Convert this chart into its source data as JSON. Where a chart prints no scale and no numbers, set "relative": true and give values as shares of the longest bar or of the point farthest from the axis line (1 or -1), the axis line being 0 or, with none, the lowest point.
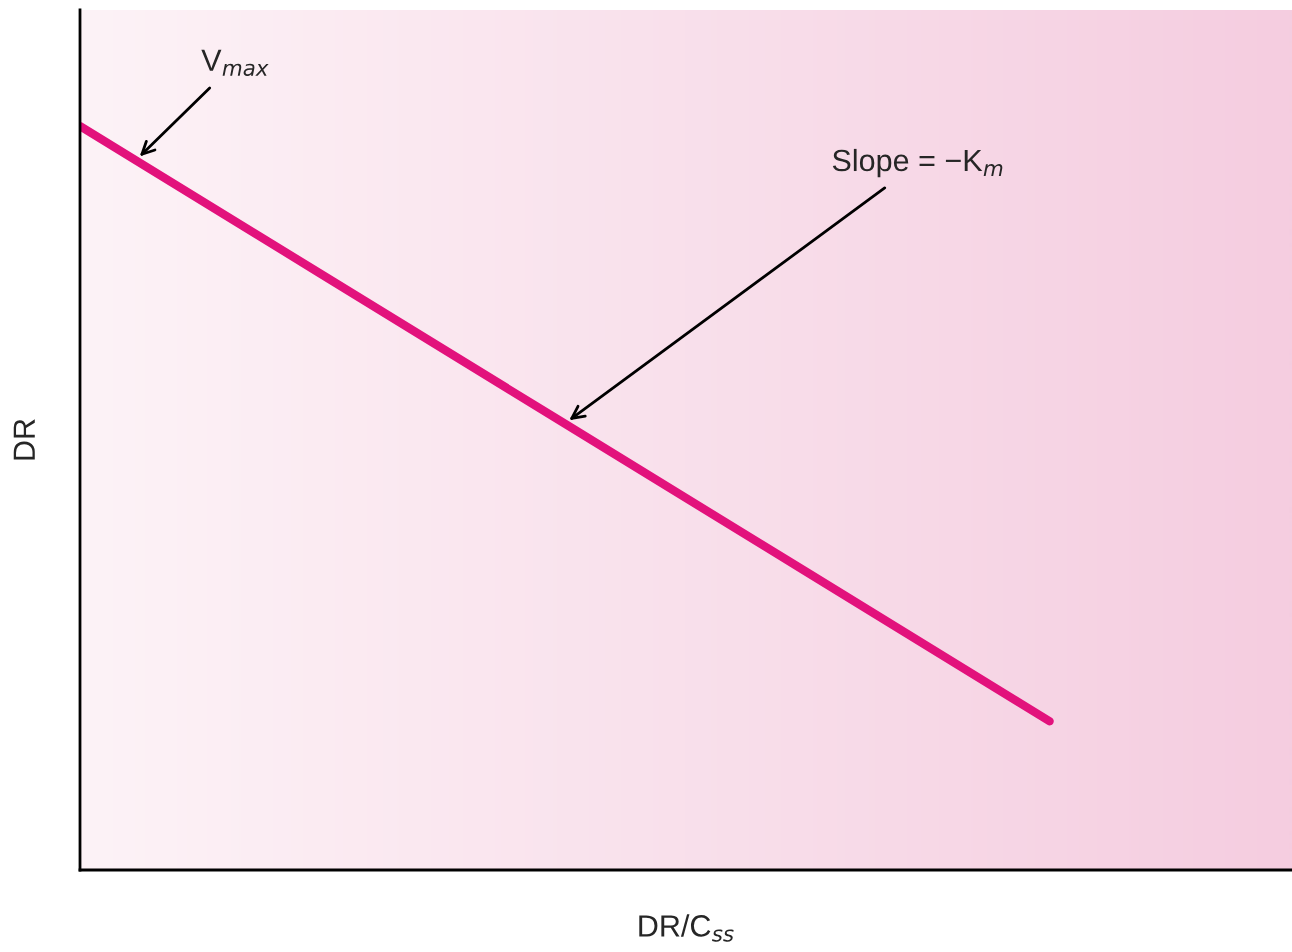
{
  "chart_data": {
    "type": "line",
    "relative": true,
    "tick_labels": false,
    "xlabel": "DR/C$_{ss}$",
    "ylabel": "DR",
    "categories": [
      null,
      null,
      null,
      null,
      null,
      null
    ],
    "series": [
      {
        "color": "#e2127c",
        "values": [
          1,
          0.8,
          0.6,
          0.4,
          0.2,
          null
        ]
      }
    ],
    "annotations": [
      "V$_{max}$",
      "Slope = −K$_{m}$"
    ]
  }
}
